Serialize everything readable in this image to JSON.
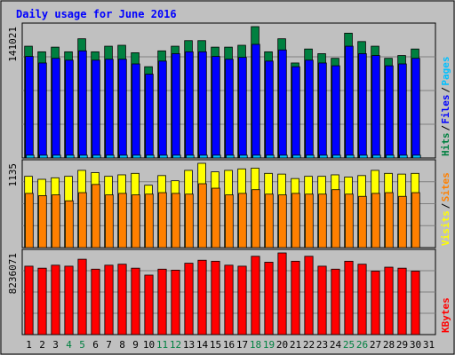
{
  "colors": {
    "background": "#c0c0c0",
    "title": "#0000ff",
    "hits": "#008040",
    "files": "#0000ff",
    "pages": "#00c0ff",
    "visits": "#ffff00",
    "sites": "#ff8000",
    "kbytes": "#ff0000",
    "weekend_label": "#008040",
    "weekday_label": "#000000"
  },
  "chart_data": {
    "type": "bar",
    "title": "Daily usage for June 2016",
    "categories": [
      "1",
      "2",
      "3",
      "4",
      "5",
      "6",
      "7",
      "8",
      "9",
      "10",
      "11",
      "12",
      "13",
      "14",
      "15",
      "16",
      "17",
      "18",
      "19",
      "20",
      "21",
      "22",
      "23",
      "24",
      "25",
      "26",
      "27",
      "28",
      "29",
      "30",
      "31"
    ],
    "weekend_days": [
      "4",
      "5",
      "11",
      "12",
      "18",
      "19",
      "25",
      "26"
    ],
    "panels": [
      {
        "name": "hits-files-pages",
        "ymax_label": "141021",
        "ymax": 141021,
        "legend": [
          {
            "label": "Hits",
            "color": "#008040"
          },
          {
            "label": "Files",
            "color": "#0000ff"
          },
          {
            "label": "Pages",
            "color": "#00c0ff"
          }
        ],
        "series": [
          {
            "name": "Hits",
            "values": [
              120000,
              114000,
              119000,
              114000,
              128000,
              114000,
              120000,
              121000,
              113000,
              98000,
              115000,
              120000,
              126000,
              126000,
              119000,
              119000,
              121000,
              141021,
              114000,
              128000,
              102000,
              117000,
              112000,
              107000,
              134000,
              125000,
              120000,
              107000,
              110000,
              117000,
              null
            ]
          },
          {
            "name": "Files",
            "values": [
              109000,
              102000,
              107000,
              105000,
              115000,
              105000,
              106000,
              106000,
              101000,
              90000,
              104000,
              112000,
              114000,
              114000,
              109000,
              106000,
              108000,
              122000,
              104000,
              116000,
              98000,
              105000,
              102000,
              99000,
              120000,
              112000,
              110000,
              99000,
              101000,
              107000,
              null
            ]
          },
          {
            "name": "Pages",
            "values": [
              3000,
              3000,
              3000,
              3000,
              3000,
              3000,
              3000,
              3000,
              3000,
              3000,
              3000,
              3000,
              3000,
              3000,
              3000,
              3000,
              3000,
              3000,
              3000,
              3000,
              3000,
              3000,
              3000,
              3000,
              3000,
              3000,
              3000,
              3000,
              3000,
              3000,
              null
            ]
          }
        ]
      },
      {
        "name": "visits-sites",
        "ymax_label": "1135",
        "ymax": 1135,
        "legend": [
          {
            "label": "Visits",
            "color": "#ffff00"
          },
          {
            "label": "Sites",
            "color": "#ff8000"
          }
        ],
        "series": [
          {
            "name": "Visits",
            "values": [
              960,
              920,
              940,
              960,
              1040,
              1010,
              960,
              980,
              1000,
              840,
              970,
              900,
              1040,
              1135,
              1020,
              1040,
              1060,
              1070,
              1000,
              990,
              930,
              960,
              960,
              980,
              950,
              970,
              1040,
              1000,
              990,
              1000,
              null
            ]
          },
          {
            "name": "Sites",
            "values": [
              730,
              700,
              710,
              630,
              740,
              850,
              710,
              730,
              710,
              720,
              740,
              730,
              720,
              860,
              800,
              710,
              730,
              780,
              720,
              710,
              730,
              720,
              720,
              780,
              720,
              690,
              730,
              740,
              690,
              740,
              null
            ]
          }
        ]
      },
      {
        "name": "kbytes",
        "ymax_label": "8236071",
        "ymax": 8236071,
        "legend": [
          {
            "label": "KBytes",
            "color": "#ff0000"
          }
        ],
        "series": [
          {
            "name": "KBytes",
            "values": [
              6900,
              6700,
              7000,
              6900,
              7600,
              6600,
              7000,
              7100,
              6700,
              6000,
              6600,
              6500,
              7200,
              7500,
              7400,
              7000,
              6900,
              7900,
              7300,
              8236,
              7400,
              7900,
              6900,
              6600,
              7400,
              7100,
              6400,
              6800,
              6700,
              6400,
              null
            ]
          }
        ]
      }
    ]
  }
}
